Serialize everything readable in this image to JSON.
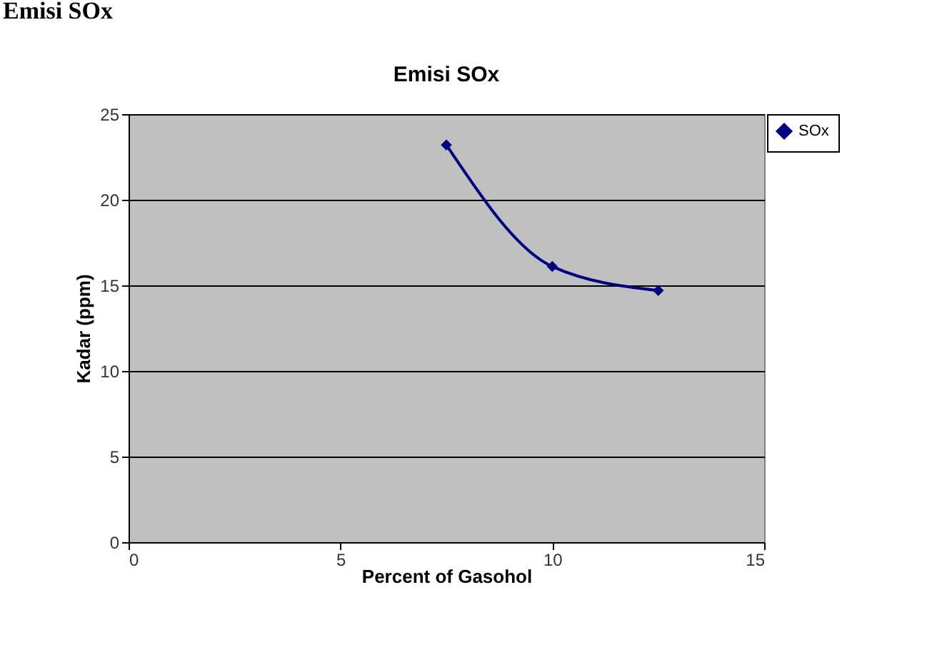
{
  "chart_data": {
    "type": "line",
    "title": "Emisi SOx",
    "xlabel": "Percent of Gasohol",
    "ylabel": "Kadar (ppm)",
    "annotations": [
      "Emisi SOx"
    ],
    "x": [
      7.5,
      10,
      12.5
    ],
    "series": [
      {
        "name": "SOx",
        "color": "#000080",
        "values": [
          23.2,
          16.1,
          14.7
        ]
      }
    ],
    "xlim": [
      0,
      15
    ],
    "xticks": [
      0,
      5,
      10,
      15
    ],
    "ylim": [
      0,
      25
    ],
    "yticks": [
      0,
      5,
      10,
      15,
      20,
      25
    ],
    "grid": "y",
    "legend": "right",
    "marker": "diamond",
    "line_style": "solid"
  }
}
